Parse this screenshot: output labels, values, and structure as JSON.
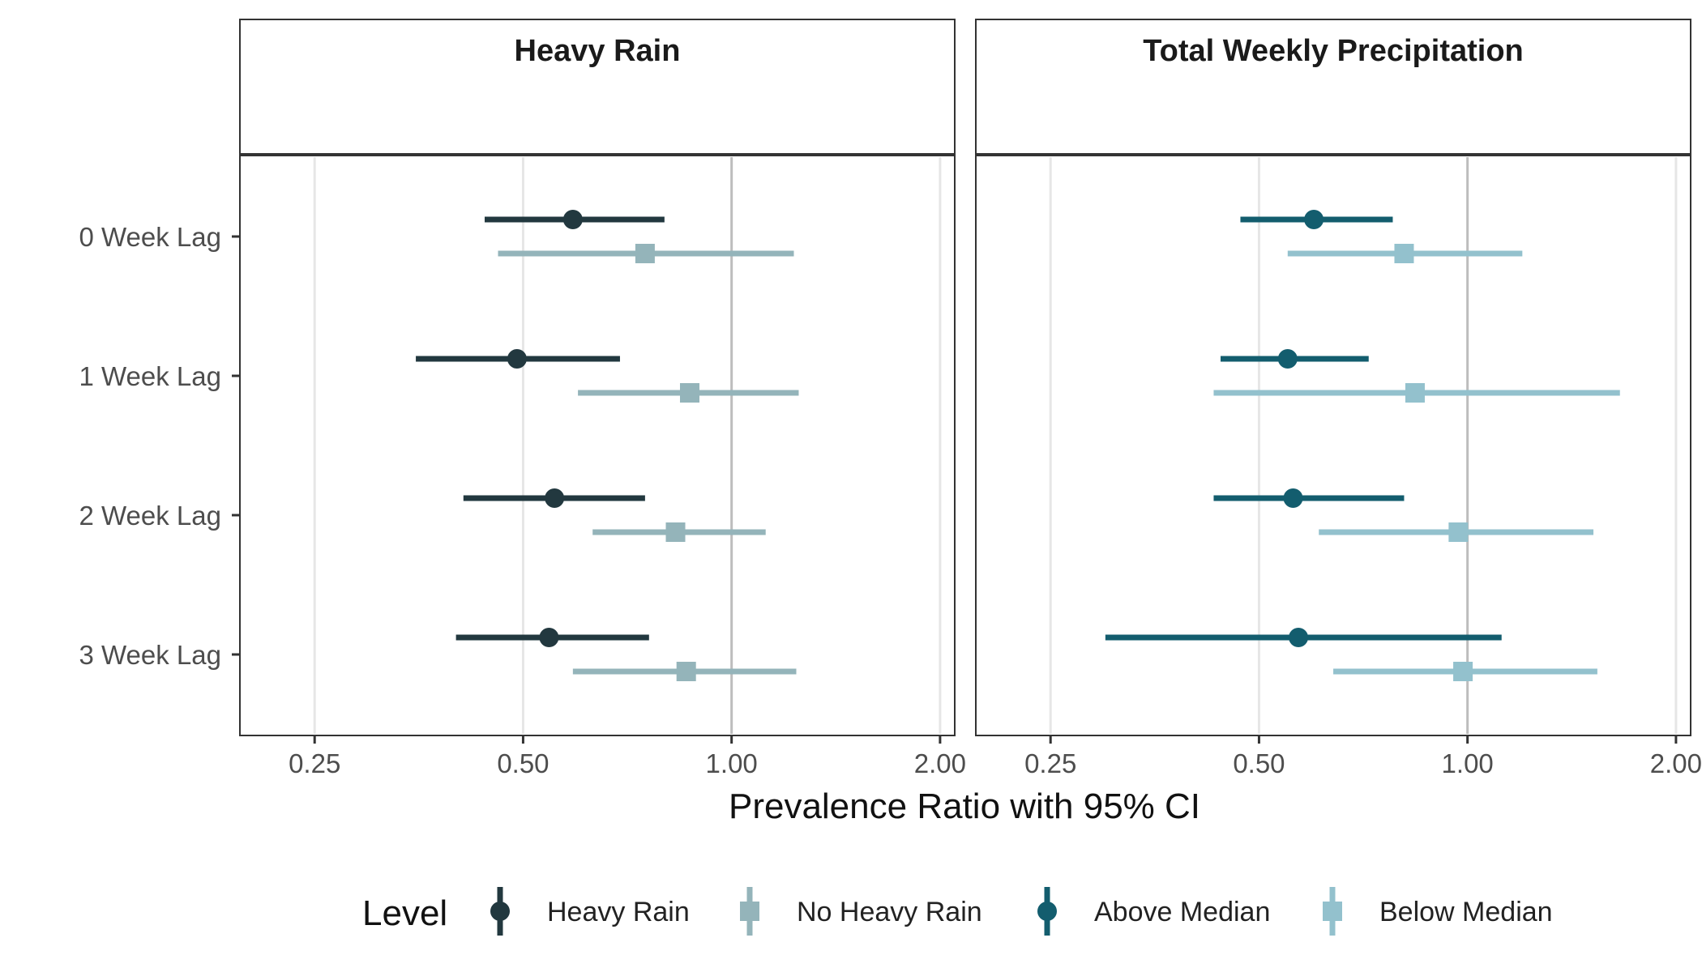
{
  "chart_data": {
    "type": "forest",
    "x_axis_title": "Prevalence Ratio with 95% CI",
    "x_scale": "log",
    "x_ticks": [
      0.25,
      0.5,
      1.0,
      2.0
    ],
    "x_tick_labels": [
      "0.25",
      "0.50",
      "1.00",
      "2.00"
    ],
    "x_range": [
      0.195,
      2.1
    ],
    "reference_value": 1.0,
    "categories": [
      "0 Week Lag",
      "1 Week Lag",
      "2 Week Lag",
      "3 Week Lag"
    ],
    "legend": {
      "title": "Level",
      "position": "bottom",
      "items": [
        {
          "key": "heavy",
          "label": "Heavy Rain",
          "shape": "circle",
          "color": "#22383f"
        },
        {
          "key": "noheavy",
          "label": "No Heavy Rain",
          "shape": "square",
          "color": "#94b4ba"
        },
        {
          "key": "above",
          "label": "Above Median",
          "shape": "circle",
          "color": "#135d6e"
        },
        {
          "key": "below",
          "label": "Below Median",
          "shape": "square",
          "color": "#93c1cd"
        }
      ]
    },
    "panels": [
      {
        "title": "Heavy Rain",
        "series": [
          {
            "key": "heavy",
            "name": "Heavy Rain",
            "points": [
              {
                "category": "0 Week Lag",
                "estimate": 0.59,
                "lower": 0.44,
                "upper": 0.8
              },
              {
                "category": "1 Week Lag",
                "estimate": 0.49,
                "lower": 0.35,
                "upper": 0.69
              },
              {
                "category": "2 Week Lag",
                "estimate": 0.555,
                "lower": 0.41,
                "upper": 0.75
              },
              {
                "category": "3 Week Lag",
                "estimate": 0.545,
                "lower": 0.4,
                "upper": 0.76
              }
            ]
          },
          {
            "key": "noheavy",
            "name": "No Heavy Rain",
            "points": [
              {
                "category": "0 Week Lag",
                "estimate": 0.75,
                "lower": 0.46,
                "upper": 1.23
              },
              {
                "category": "1 Week Lag",
                "estimate": 0.87,
                "lower": 0.6,
                "upper": 1.25
              },
              {
                "category": "2 Week Lag",
                "estimate": 0.83,
                "lower": 0.63,
                "upper": 1.12
              },
              {
                "category": "3 Week Lag",
                "estimate": 0.86,
                "lower": 0.59,
                "upper": 1.24
              }
            ]
          }
        ]
      },
      {
        "title": "Total Weekly Precipitation",
        "series": [
          {
            "key": "above",
            "name": "Above Median",
            "points": [
              {
                "category": "0 Week Lag",
                "estimate": 0.6,
                "lower": 0.47,
                "upper": 0.78
              },
              {
                "category": "1 Week Lag",
                "estimate": 0.55,
                "lower": 0.44,
                "upper": 0.72
              },
              {
                "category": "2 Week Lag",
                "estimate": 0.56,
                "lower": 0.43,
                "upper": 0.81
              },
              {
                "category": "3 Week Lag",
                "estimate": 0.57,
                "lower": 0.3,
                "upper": 1.12
              }
            ]
          },
          {
            "key": "below",
            "name": "Below Median",
            "points": [
              {
                "category": "0 Week Lag",
                "estimate": 0.81,
                "lower": 0.55,
                "upper": 1.2
              },
              {
                "category": "1 Week Lag",
                "estimate": 0.84,
                "lower": 0.43,
                "upper": 1.66
              },
              {
                "category": "2 Week Lag",
                "estimate": 0.97,
                "lower": 0.61,
                "upper": 1.52
              },
              {
                "category": "3 Week Lag",
                "estimate": 0.985,
                "lower": 0.64,
                "upper": 1.54
              }
            ]
          }
        ]
      }
    ]
  }
}
